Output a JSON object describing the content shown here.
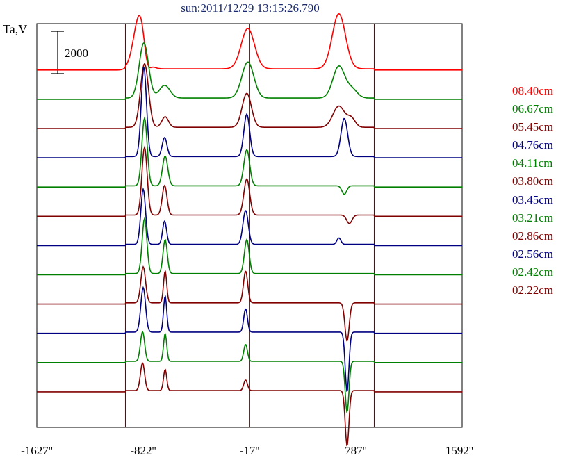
{
  "chart_data": {
    "type": "line",
    "title": "sun:2011/12/29 13:15:26.790",
    "ylabel": "Ta,V",
    "scale_bar": "2000",
    "x_ticks": [
      "-1627''",
      "-822''",
      "-17''",
      "787''",
      "1592''"
    ],
    "xlim": [
      -1627,
      1592
    ],
    "vertical_lines": [
      -955,
      -17,
      928
    ],
    "colors": {
      "red": "#ff0000",
      "green": "#008000",
      "maroon": "#800000",
      "navy": "#000080"
    },
    "series": [
      {
        "name": "08.40cm",
        "color": "#ff0000",
        "peaks": [
          [
            -847,
            2600,
            45
          ],
          [
            -795,
            -900,
            25
          ],
          [
            -30,
            1900,
            50
          ],
          [
            659,
            2600,
            50
          ]
        ]
      },
      {
        "name": "06.67cm",
        "color": "#008000",
        "peaks": [
          [
            -817,
            2600,
            35
          ],
          [
            -660,
            600,
            40
          ],
          [
            -30,
            1700,
            45
          ],
          [
            659,
            1500,
            45
          ],
          [
            759,
            400,
            40
          ]
        ]
      },
      {
        "name": "05.45cm",
        "color": "#800000",
        "peaks": [
          [
            -812,
            3000,
            30
          ],
          [
            -656,
            500,
            25
          ],
          [
            -38,
            1600,
            35
          ],
          [
            659,
            1000,
            45
          ],
          [
            754,
            400,
            30
          ]
        ]
      },
      {
        "name": "04.76cm",
        "color": "#000080",
        "peaks": [
          [
            -817,
            4200,
            20
          ],
          [
            -660,
            900,
            18
          ],
          [
            -38,
            2000,
            22
          ],
          [
            700,
            1800,
            25
          ]
        ]
      },
      {
        "name": "04.11cm",
        "color": "#008000",
        "peaks": [
          [
            -812,
            3200,
            20
          ],
          [
            -656,
            1400,
            20
          ],
          [
            -38,
            1700,
            22
          ],
          [
            700,
            -400,
            18
          ]
        ]
      },
      {
        "name": "03.80cm",
        "color": "#800000",
        "peaks": [
          [
            -812,
            3200,
            20
          ],
          [
            -660,
            1400,
            18
          ],
          [
            -38,
            1700,
            22
          ],
          [
            738,
            -400,
            20
          ]
        ]
      },
      {
        "name": "03.45cm",
        "color": "#000080",
        "peaks": [
          [
            -822,
            2600,
            18
          ],
          [
            -660,
            1100,
            15
          ],
          [
            -47,
            1600,
            20
          ],
          [
            659,
            300,
            15
          ]
        ]
      },
      {
        "name": "03.21cm",
        "color": "#008000",
        "peaks": [
          [
            -812,
            2600,
            18
          ],
          [
            -656,
            1600,
            16
          ],
          [
            -38,
            1600,
            18
          ]
        ]
      },
      {
        "name": "02.86cm",
        "color": "#800000",
        "peaks": [
          [
            -822,
            1700,
            18
          ],
          [
            -656,
            1500,
            12
          ],
          [
            -47,
            1500,
            16
          ],
          [
            721,
            -1800,
            16
          ]
        ]
      },
      {
        "name": "02.56cm",
        "color": "#000080",
        "peaks": [
          [
            -822,
            2100,
            18
          ],
          [
            -656,
            1700,
            12
          ],
          [
            -47,
            1100,
            14
          ],
          [
            721,
            -2800,
            14
          ]
        ]
      },
      {
        "name": "02.42cm",
        "color": "#008000",
        "peaks": [
          [
            -827,
            1400,
            16
          ],
          [
            -656,
            1300,
            12
          ],
          [
            -47,
            800,
            14
          ],
          [
            721,
            -2400,
            14
          ]
        ]
      },
      {
        "name": "02.22cm",
        "color": "#800000",
        "peaks": [
          [
            -827,
            1300,
            16
          ],
          [
            -656,
            1000,
            12
          ],
          [
            -47,
            500,
            14
          ],
          [
            721,
            -2600,
            14
          ]
        ]
      }
    ]
  }
}
